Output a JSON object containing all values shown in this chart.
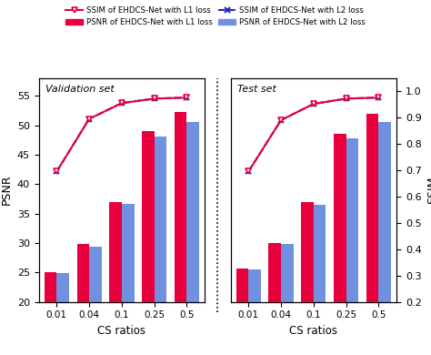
{
  "cs_ratios": [
    "0.01",
    "0.04",
    "0.1",
    "0.25",
    "0.5"
  ],
  "val_psnr_l1": [
    25.0,
    29.8,
    37.0,
    49.0,
    52.2
  ],
  "val_psnr_l2": [
    24.8,
    29.4,
    36.6,
    48.1,
    50.5
  ],
  "val_ssim_l1": [
    0.695,
    0.895,
    0.955,
    0.972,
    0.976
  ],
  "val_ssim_l2": [
    0.695,
    0.895,
    0.955,
    0.972,
    0.976
  ],
  "test_psnr_l1": [
    25.6,
    30.0,
    37.0,
    48.6,
    52.0
  ],
  "test_psnr_l2": [
    25.5,
    29.8,
    36.4,
    47.8,
    50.6
  ],
  "test_ssim_l1": [
    0.695,
    0.89,
    0.952,
    0.972,
    0.976
  ],
  "test_ssim_l2": [
    0.695,
    0.89,
    0.952,
    0.972,
    0.976
  ],
  "bar_color_l1": "#e8003c",
  "bar_color_l2": "#7090e0",
  "line_color_l1": "#e8003c",
  "line_color_l2": "#2828b8",
  "ylim_psnr": [
    20,
    58
  ],
  "ylim_ssim": [
    0.2,
    1.05
  ],
  "ylabel_left": "PSNR",
  "ylabel_right": "SSIM",
  "xlabel": "CS ratios",
  "label_val": "Validation set",
  "label_test": "Test set",
  "legend_ssim_l1": "SSIM of EHDCS-Net with L1 loss",
  "legend_ssim_l2": "SSIM of EHDCS-Net with L2 loss",
  "legend_psnr_l1": "PSNR of EHDCS-Net with L1 loss",
  "legend_psnr_l2": "PSNR of EHDCS-Net with L2 loss",
  "bg_color": "#ffffff",
  "yticks_psnr": [
    20,
    25,
    30,
    35,
    40,
    45,
    50,
    55
  ],
  "yticks_ssim": [
    0.2,
    0.3,
    0.4,
    0.5,
    0.6,
    0.7,
    0.8,
    0.9,
    1.0
  ]
}
